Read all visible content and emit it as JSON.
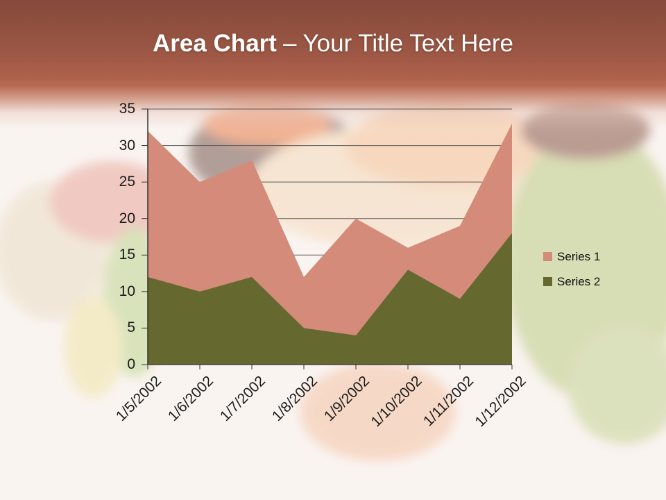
{
  "slide": {
    "title": {
      "bold": "Area Chart",
      "rest": "– Your Title Text Here"
    }
  },
  "theme": {
    "banner_top": "#86493B",
    "banner_mid": "#B96C55",
    "background": "#FAF4F1",
    "title_color": "#FFFFFF",
    "axis_color": "#333333",
    "gridline_color": "#5A5A5A",
    "tick_text_color": "#1A1A1A"
  },
  "chart_data": {
    "type": "area",
    "title": "",
    "xlabel": "",
    "ylabel": "",
    "categories": [
      "1/5/2002",
      "1/6/2002",
      "1/7/2002",
      "1/8/2002",
      "1/9/2002",
      "1/10/2002",
      "1/11/2002",
      "1/12/2002"
    ],
    "series": [
      {
        "name": "Series 1",
        "color": "#D48B79",
        "values": [
          32,
          25,
          28,
          12,
          20,
          16,
          19,
          33
        ]
      },
      {
        "name": "Series 2",
        "color": "#65682F",
        "values": [
          12,
          10,
          12,
          5,
          4,
          13,
          9,
          18
        ]
      }
    ],
    "ylim": [
      0,
      35
    ],
    "yticks": [
      0,
      5,
      10,
      15,
      20,
      25,
      30,
      35
    ],
    "grid": "horizontal",
    "legend_position": "right",
    "overlap": true
  }
}
